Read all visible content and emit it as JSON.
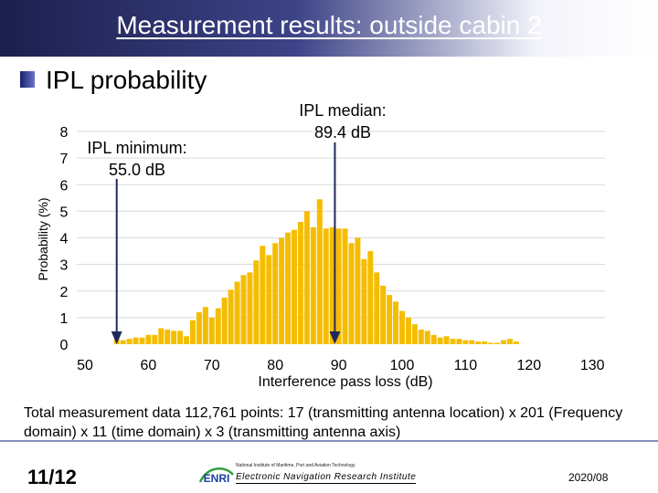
{
  "slide": {
    "title": "Measurement results: outside cabin 2",
    "section": "IPL probability",
    "caption": "Total measurement data 112,761 points: 17 (transmitting antenna location)  x 201 (Frequency domain) x 11 (time domain) x 3 (transmitting antenna axis)",
    "page_number": "11/12",
    "institute_small": "National Institute of Maritime, Port and Aviation Technology",
    "institute_name": "Electronic Navigation Research Institute",
    "logo_text": "ENRI",
    "date": "2020/08"
  },
  "colors": {
    "bar": "#f5bd00",
    "arrow": "#1f2a5c",
    "gridline": "#d9d9d9"
  },
  "chart_data": {
    "type": "bar",
    "xlabel": "Interference pass loss (dB)",
    "ylabel": "Probability (%)",
    "xlim": [
      50,
      130
    ],
    "ylim": [
      0,
      8
    ],
    "xticks": [
      50,
      60,
      70,
      80,
      90,
      100,
      110,
      120,
      130
    ],
    "yticks": [
      0,
      1,
      2,
      3,
      4,
      5,
      6,
      7,
      8
    ],
    "grid": true,
    "x": [
      55,
      56,
      57,
      58,
      59,
      60,
      61,
      62,
      63,
      64,
      65,
      66,
      67,
      68,
      69,
      70,
      71,
      72,
      73,
      74,
      75,
      76,
      77,
      78,
      79,
      80,
      81,
      82,
      83,
      84,
      85,
      86,
      87,
      88,
      89,
      90,
      91,
      92,
      93,
      94,
      95,
      96,
      97,
      98,
      99,
      100,
      101,
      102,
      103,
      104,
      105,
      106,
      107,
      108,
      109,
      110,
      111,
      112,
      113,
      114,
      115,
      116,
      117,
      118
    ],
    "values": [
      0.2,
      0.15,
      0.2,
      0.25,
      0.25,
      0.35,
      0.35,
      0.6,
      0.55,
      0.5,
      0.5,
      0.3,
      0.9,
      1.2,
      1.4,
      1.0,
      1.35,
      1.75,
      2.05,
      2.35,
      2.6,
      2.7,
      3.15,
      3.7,
      3.35,
      3.8,
      4.0,
      4.2,
      4.3,
      4.6,
      5.0,
      4.4,
      5.45,
      4.35,
      4.4,
      4.35,
      4.35,
      3.8,
      4.0,
      3.2,
      3.5,
      2.7,
      2.2,
      1.85,
      1.6,
      1.25,
      1.0,
      0.75,
      0.55,
      0.5,
      0.35,
      0.25,
      0.3,
      0.2,
      0.2,
      0.15,
      0.15,
      0.1,
      0.1,
      0.05,
      0.05,
      0.15,
      0.2,
      0.1
    ],
    "annotations": [
      {
        "text_line1": "IPL minimum:",
        "text_line2": "55.0 dB",
        "x": 55.0
      },
      {
        "text_line1": "IPL median:",
        "text_line2": "89.4 dB",
        "x": 89.4
      }
    ]
  }
}
